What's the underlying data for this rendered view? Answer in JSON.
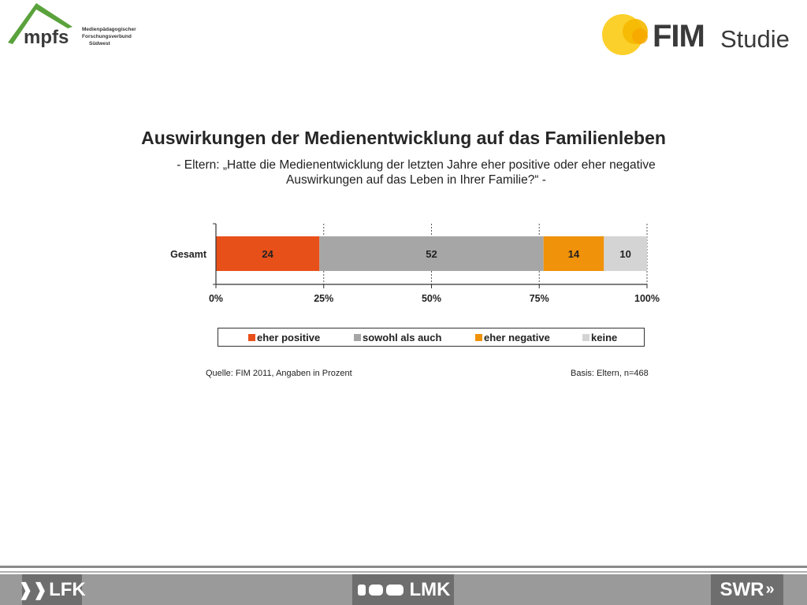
{
  "header": {
    "mpfs_logo": {
      "text": "mpfs",
      "lines": [
        "Medienpädagogischer",
        "Forschungsverbund",
        "Südwest"
      ],
      "colors": {
        "roof": "#5aa23c",
        "text": "#3a3a3a"
      }
    },
    "fim_logo": {
      "fim": "FIM",
      "studie": "Studie",
      "colors": {
        "sun": "#f5b800",
        "text": "#3a3a3a"
      }
    }
  },
  "title": "Auswirkungen der Medienentwicklung auf das Familienleben",
  "subtitle_line1": "- Eltern: „Hatte die Medienentwicklung der letzten Jahre eher positive oder eher negative",
  "subtitle_line2": "Auswirkungen auf das Leben in Ihrer Familie?“ -",
  "chart_data": {
    "type": "bar",
    "orientation": "horizontal",
    "stacked": true,
    "categories": [
      "Gesamt"
    ],
    "series": [
      {
        "name": "eher positive",
        "values": [
          24
        ],
        "color": "#e8501a"
      },
      {
        "name": "sowohl als auch",
        "values": [
          52
        ],
        "color": "#a6a6a6"
      },
      {
        "name": "eher negative",
        "values": [
          14
        ],
        "color": "#f0920a"
      },
      {
        "name": "keine",
        "values": [
          10
        ],
        "color": "#d4d4d4"
      }
    ],
    "xticks": [
      "0%",
      "25%",
      "50%",
      "75%",
      "100%"
    ],
    "xlim": [
      0,
      100
    ],
    "grid": "dotted vertical at 25% steps",
    "legend_position": "bottom"
  },
  "source": "Quelle: FIM 2011,  Angaben in Prozent",
  "basis": "Basis: Eltern, n=468",
  "footer": {
    "lfk": "LFK",
    "lmk": "LMK",
    "swr": "SWR",
    "colors": {
      "bar": "#9a9a9a",
      "logo_bg": "#6e6e6e"
    }
  }
}
